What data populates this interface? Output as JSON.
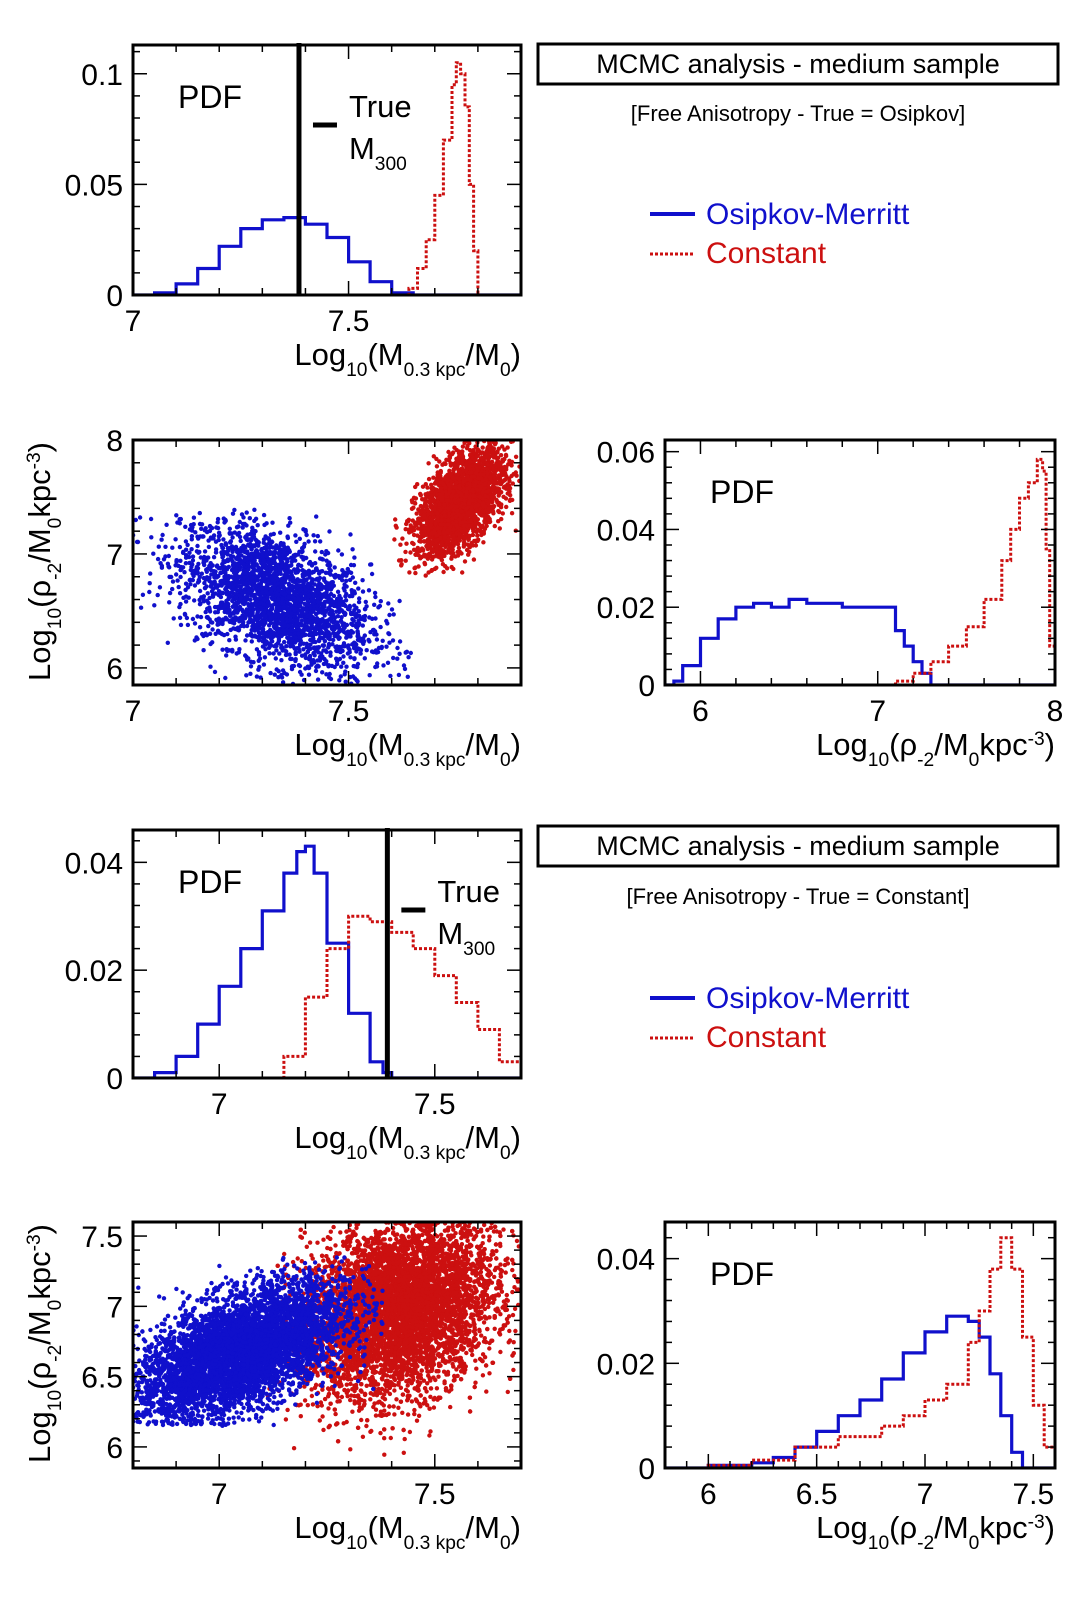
{
  "colors": {
    "osipkov": "#1010cc",
    "constant": "#cc1010",
    "axis": "#000000",
    "true_line": "#000000"
  },
  "chart_data": [
    {
      "id": "p1",
      "type": "line",
      "subtitle": "PDF",
      "xlabel": {
        "main": "Log",
        "sub1": "10",
        "mid": "(M",
        "sub2": "0.3 kpc",
        "mid2": "/M",
        "sub3": "0",
        "end": ")"
      },
      "ylabel": "",
      "xlim": [
        7.0,
        7.9
      ],
      "ylim": [
        0,
        0.113
      ],
      "xticks": [
        {
          "v": 7.0,
          "label": "7"
        },
        {
          "v": 7.5,
          "label": "7.5"
        }
      ],
      "yticks": [
        {
          "v": 0,
          "label": "0"
        },
        {
          "v": 0.05,
          "label": "0.05"
        },
        {
          "v": 0.1,
          "label": "0.1"
        }
      ],
      "true_value": 7.385,
      "true_label": {
        "line1": "True",
        "line2": "M",
        "sub": "300"
      },
      "series": [
        {
          "name": "Osipkov-Merritt",
          "color_key": "osipkov",
          "dashed": false,
          "x": [
            7.0,
            7.05,
            7.1,
            7.15,
            7.2,
            7.25,
            7.3,
            7.35,
            7.4,
            7.45,
            7.5,
            7.55,
            7.6,
            7.65,
            7.7,
            7.9
          ],
          "y": [
            0,
            0.001,
            0.005,
            0.012,
            0.022,
            0.03,
            0.034,
            0.035,
            0.032,
            0.026,
            0.015,
            0.006,
            0.001,
            0,
            0,
            0
          ]
        },
        {
          "name": "Constant",
          "color_key": "constant",
          "dashed": true,
          "x": [
            7.0,
            7.6,
            7.64,
            7.66,
            7.68,
            7.7,
            7.72,
            7.74,
            7.75,
            7.76,
            7.77,
            7.78,
            7.79,
            7.8,
            7.9
          ],
          "y": [
            0,
            0,
            0.003,
            0.012,
            0.025,
            0.045,
            0.07,
            0.095,
            0.105,
            0.1,
            0.085,
            0.05,
            0.02,
            0,
            0
          ]
        }
      ]
    },
    {
      "id": "p2",
      "type": "scatter",
      "xlabel": {
        "main": "Log",
        "sub1": "10",
        "mid": "(M",
        "sub2": "0.3 kpc",
        "mid2": "/M",
        "sub3": "0",
        "end": ")"
      },
      "ylabel": {
        "main": "Log",
        "sub1": "10",
        "mid": "(ρ",
        "sub2": "-2",
        "mid2": "/M",
        "sub3": "0",
        "end": "kpc",
        "sup": "-3",
        "close": ")"
      },
      "xlim": [
        7.0,
        7.9
      ],
      "ylim": [
        5.85,
        8.0
      ],
      "xticks": [
        {
          "v": 7.0,
          "label": "7"
        },
        {
          "v": 7.5,
          "label": "7.5"
        }
      ],
      "yticks": [
        {
          "v": 6,
          "label": "6"
        },
        {
          "v": 7,
          "label": "7"
        },
        {
          "v": 8,
          "label": "8"
        }
      ],
      "series": [
        {
          "name": "Osipkov-Merritt",
          "color_key": "osipkov",
          "cx": 7.33,
          "cy": 6.62,
          "sx": 0.11,
          "sy": 0.32,
          "rho": -0.45,
          "n": 2600,
          "xmin": 7.0,
          "xmax": 7.65,
          "ymin": 5.85,
          "ymax": 7.4
        },
        {
          "name": "Constant",
          "color_key": "constant",
          "cx": 7.76,
          "cy": 7.45,
          "sx": 0.05,
          "sy": 0.22,
          "rho": 0.55,
          "n": 2600,
          "xmin": 7.6,
          "xmax": 7.9,
          "ymin": 6.8,
          "ymax": 8.0
        }
      ]
    },
    {
      "id": "p3",
      "type": "line",
      "subtitle": "PDF",
      "xlabel": {
        "main": "Log",
        "sub1": "10",
        "mid": "(ρ",
        "sub2": "-2",
        "mid2": "/M",
        "sub3": "0",
        "end": "kpc",
        "sup": "-3",
        "close": ")"
      },
      "xlim": [
        5.8,
        8.0
      ],
      "ylim": [
        0,
        0.063
      ],
      "xticks": [
        {
          "v": 6,
          "label": "6"
        },
        {
          "v": 7,
          "label": "7"
        },
        {
          "v": 8,
          "label": "8"
        }
      ],
      "yticks": [
        {
          "v": 0,
          "label": "0"
        },
        {
          "v": 0.02,
          "label": "0.02"
        },
        {
          "v": 0.04,
          "label": "0.04"
        },
        {
          "v": 0.06,
          "label": "0.06"
        }
      ],
      "series": [
        {
          "name": "Osipkov-Merritt",
          "color_key": "osipkov",
          "dashed": false,
          "x": [
            5.8,
            5.85,
            5.9,
            6.0,
            6.1,
            6.2,
            6.3,
            6.4,
            6.5,
            6.6,
            6.7,
            6.8,
            6.9,
            7.0,
            7.05,
            7.1,
            7.15,
            7.2,
            7.25,
            7.3,
            8.0
          ],
          "y": [
            0,
            0.001,
            0.005,
            0.012,
            0.017,
            0.02,
            0.021,
            0.02,
            0.022,
            0.021,
            0.021,
            0.02,
            0.02,
            0.02,
            0.02,
            0.014,
            0.01,
            0.006,
            0.003,
            0,
            0
          ]
        },
        {
          "name": "Constant",
          "color_key": "constant",
          "dashed": true,
          "x": [
            5.8,
            7.0,
            7.1,
            7.2,
            7.3,
            7.4,
            7.5,
            7.6,
            7.7,
            7.75,
            7.8,
            7.85,
            7.9,
            7.93,
            7.95,
            7.97,
            8.0
          ],
          "y": [
            0,
            0,
            0.001,
            0.003,
            0.006,
            0.01,
            0.015,
            0.022,
            0.032,
            0.04,
            0.048,
            0.052,
            0.058,
            0.055,
            0.035,
            0.01,
            0.008
          ]
        }
      ]
    },
    {
      "id": "p4",
      "type": "line",
      "subtitle": "PDF",
      "xlabel": {
        "main": "Log",
        "sub1": "10",
        "mid": "(M",
        "sub2": "0.3 kpc",
        "mid2": "/M",
        "sub3": "0",
        "end": ")"
      },
      "xlim": [
        6.8,
        7.7
      ],
      "ylim": [
        0,
        0.046
      ],
      "xticks": [
        {
          "v": 7.0,
          "label": "7"
        },
        {
          "v": 7.5,
          "label": "7.5"
        }
      ],
      "yticks": [
        {
          "v": 0,
          "label": "0"
        },
        {
          "v": 0.02,
          "label": "0.02"
        },
        {
          "v": 0.04,
          "label": "0.04"
        }
      ],
      "true_value": 7.39,
      "true_label": {
        "line1": "True",
        "line2": "M",
        "sub": "300"
      },
      "series": [
        {
          "name": "Osipkov-Merritt",
          "color_key": "osipkov",
          "dashed": false,
          "x": [
            6.8,
            6.85,
            6.9,
            6.95,
            7.0,
            7.05,
            7.1,
            7.15,
            7.18,
            7.2,
            7.22,
            7.25,
            7.3,
            7.35,
            7.38,
            7.4,
            7.7
          ],
          "y": [
            0,
            0.001,
            0.004,
            0.01,
            0.017,
            0.024,
            0.031,
            0.038,
            0.042,
            0.043,
            0.038,
            0.025,
            0.012,
            0.003,
            0.001,
            0,
            0
          ]
        },
        {
          "name": "Constant",
          "color_key": "constant",
          "dashed": true,
          "x": [
            6.8,
            7.1,
            7.15,
            7.2,
            7.25,
            7.3,
            7.35,
            7.4,
            7.45,
            7.5,
            7.55,
            7.6,
            7.65,
            7.7
          ],
          "y": [
            0,
            0,
            0.004,
            0.015,
            0.024,
            0.03,
            0.029,
            0.027,
            0.024,
            0.019,
            0.014,
            0.009,
            0.003,
            0
          ]
        }
      ]
    },
    {
      "id": "p5",
      "type": "scatter",
      "xlabel": {
        "main": "Log",
        "sub1": "10",
        "mid": "(M",
        "sub2": "0.3 kpc",
        "mid2": "/M",
        "sub3": "0",
        "end": ")"
      },
      "ylabel": {
        "main": "Log",
        "sub1": "10",
        "mid": "(ρ",
        "sub2": "-2",
        "mid2": "/M",
        "sub3": "0",
        "end": "kpc",
        "sup": "-3",
        "close": ")"
      },
      "xlim": [
        6.8,
        7.7
      ],
      "ylim": [
        5.85,
        7.6
      ],
      "xticks": [
        {
          "v": 7.0,
          "label": "7"
        },
        {
          "v": 7.5,
          "label": "7.5"
        }
      ],
      "yticks": [
        {
          "v": 6,
          "label": "6"
        },
        {
          "v": 6.5,
          "label": "6.5"
        },
        {
          "v": 7,
          "label": "7"
        },
        {
          "v": 7.5,
          "label": "7.5"
        }
      ],
      "series": [
        {
          "name": "Constant",
          "color_key": "constant",
          "cx": 7.42,
          "cy": 7.0,
          "sx": 0.11,
          "sy": 0.32,
          "rho": 0.25,
          "n": 6500,
          "xmin": 7.1,
          "xmax": 7.7,
          "ymin": 5.85,
          "ymax": 7.6
        },
        {
          "name": "Osipkov-Merritt",
          "color_key": "osipkov",
          "cx": 7.05,
          "cy": 6.68,
          "sx": 0.12,
          "sy": 0.24,
          "rho": 0.55,
          "n": 5500,
          "xmin": 6.8,
          "xmax": 7.38,
          "ymin": 6.15,
          "ymax": 7.35
        }
      ]
    },
    {
      "id": "p6",
      "type": "line",
      "subtitle": "PDF",
      "xlabel": {
        "main": "Log",
        "sub1": "10",
        "mid": "(ρ",
        "sub2": "-2",
        "mid2": "/M",
        "sub3": "0",
        "end": "kpc",
        "sup": "-3",
        "close": ")"
      },
      "xlim": [
        5.8,
        7.6
      ],
      "ylim": [
        0,
        0.047
      ],
      "xticks": [
        {
          "v": 6,
          "label": "6"
        },
        {
          "v": 6.5,
          "label": "6.5"
        },
        {
          "v": 7,
          "label": "7"
        },
        {
          "v": 7.5,
          "label": "7.5"
        }
      ],
      "yticks": [
        {
          "v": 0,
          "label": "0"
        },
        {
          "v": 0.02,
          "label": "0.02"
        },
        {
          "v": 0.04,
          "label": "0.04"
        }
      ],
      "series": [
        {
          "name": "Osipkov-Merritt",
          "color_key": "osipkov",
          "dashed": false,
          "x": [
            5.8,
            6.0,
            6.2,
            6.3,
            6.4,
            6.5,
            6.6,
            6.7,
            6.8,
            6.9,
            7.0,
            7.1,
            7.2,
            7.25,
            7.3,
            7.35,
            7.4,
            7.45,
            7.6
          ],
          "y": [
            0,
            0.0005,
            0.001,
            0.002,
            0.004,
            0.007,
            0.01,
            0.013,
            0.017,
            0.022,
            0.026,
            0.029,
            0.028,
            0.025,
            0.018,
            0.01,
            0.003,
            0,
            0
          ]
        },
        {
          "name": "Constant",
          "color_key": "constant",
          "dashed": true,
          "x": [
            5.8,
            6.0,
            6.2,
            6.4,
            6.6,
            6.8,
            6.9,
            7.0,
            7.1,
            7.2,
            7.25,
            7.3,
            7.35,
            7.4,
            7.45,
            7.5,
            7.55,
            7.6
          ],
          "y": [
            0,
            0.0005,
            0.0015,
            0.004,
            0.006,
            0.008,
            0.01,
            0.013,
            0.016,
            0.024,
            0.03,
            0.038,
            0.044,
            0.038,
            0.025,
            0.012,
            0.004,
            0.001
          ]
        }
      ]
    }
  ],
  "info_top": {
    "title": "MCMC analysis - medium sample",
    "subtitle": "[Free Anisotropy - True = Osipkov]"
  },
  "info_bottom": {
    "title": "MCMC analysis - medium sample",
    "subtitle": "[Free Anisotropy - True = Constant]"
  },
  "legend": {
    "osipkov": "Osipkov-Merritt",
    "constant": "Constant"
  }
}
